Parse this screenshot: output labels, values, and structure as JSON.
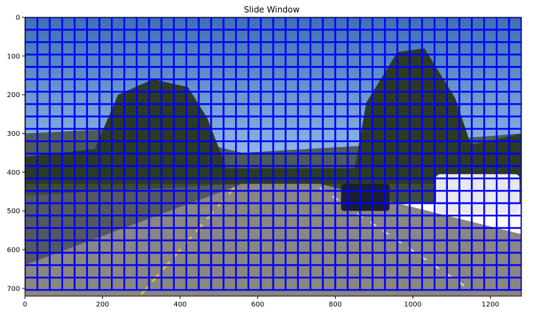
{
  "chart_data": {
    "type": "image-grid",
    "title": "Slide Window",
    "xlabel": "",
    "ylabel": "",
    "image_width": 1280,
    "image_height": 720,
    "xlim": [
      0,
      1280
    ],
    "ylim": [
      720,
      0
    ],
    "x_ticks": [
      0,
      200,
      400,
      600,
      800,
      1000,
      1200
    ],
    "y_ticks": [
      0,
      100,
      200,
      300,
      400,
      500,
      600,
      700
    ],
    "window_size": 32,
    "window_overlap": 0.0,
    "window_color": "#0000ff",
    "grid": false
  },
  "colors": {
    "sky_top": "#3d6fb5",
    "sky_bottom": "#9ec3ee",
    "trees": "#2d3a22",
    "road": "#8b8680",
    "lane_yellow": "#e6c21a",
    "car_white": "#e8e8ee",
    "car_dark": "#1c1f2a"
  }
}
